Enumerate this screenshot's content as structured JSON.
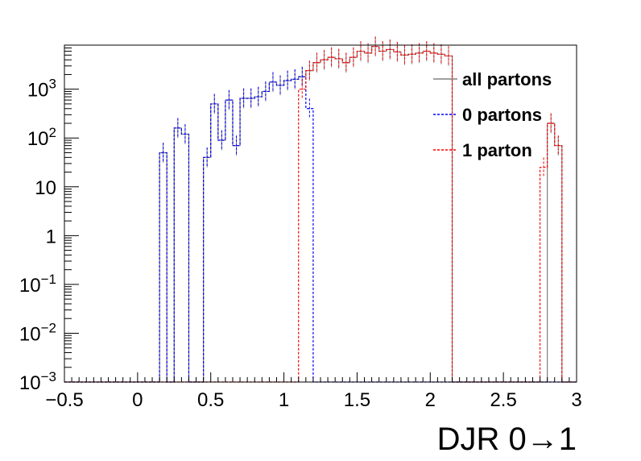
{
  "chart_data": {
    "type": "line",
    "xlabel": "DJR 0→1",
    "ylabel": "",
    "xlim": [
      -0.5,
      3.0
    ],
    "ylim": [
      0.001,
      8000
    ],
    "y_scale": "log",
    "grid": false,
    "legend_placement": "top-right",
    "bin_width": 0.05,
    "x_ticks": [
      -0.5,
      0,
      0.5,
      1,
      1.5,
      2,
      2.5,
      3
    ],
    "x_tick_labels": [
      "−0.5",
      "0",
      "0.5",
      "1",
      "1.5",
      "2",
      "2.5",
      "3"
    ],
    "y_ticks": [
      {
        "value": 1000,
        "base": "10",
        "exp": "3"
      },
      {
        "value": 100,
        "base": "10",
        "exp": "2"
      },
      {
        "value": 10,
        "base": "10",
        "exp": ""
      },
      {
        "value": 1,
        "base": "1",
        "exp": ""
      },
      {
        "value": 0.1,
        "base": "10",
        "exp": "−1"
      },
      {
        "value": 0.01,
        "base": "10",
        "exp": "−2"
      },
      {
        "value": 0.001,
        "base": "10",
        "exp": "−3"
      }
    ],
    "series": [
      {
        "name": "all partons",
        "color": "#808080",
        "style": "solid",
        "bins": [
          [
            0.15,
            50
          ],
          [
            0.25,
            160
          ],
          [
            0.3,
            120
          ],
          [
            0.35,
            0.001
          ],
          [
            0.45,
            40
          ],
          [
            0.5,
            500
          ],
          [
            0.55,
            90
          ],
          [
            0.6,
            600
          ],
          [
            0.65,
            70
          ],
          [
            0.7,
            650
          ],
          [
            0.75,
            650
          ],
          [
            0.8,
            700
          ],
          [
            0.85,
            900
          ],
          [
            0.9,
            1400
          ],
          [
            0.95,
            1200
          ],
          [
            1.0,
            1500
          ],
          [
            1.05,
            1600
          ],
          [
            1.1,
            1800
          ],
          [
            1.15,
            2400
          ],
          [
            1.2,
            3500
          ],
          [
            1.25,
            4000
          ],
          [
            1.3,
            4500
          ],
          [
            1.35,
            4200
          ],
          [
            1.4,
            3500
          ],
          [
            1.45,
            4500
          ],
          [
            1.5,
            6000
          ],
          [
            1.55,
            5500
          ],
          [
            1.6,
            7500
          ],
          [
            1.65,
            6000
          ],
          [
            1.7,
            6500
          ],
          [
            1.75,
            5800
          ],
          [
            1.8,
            5000
          ],
          [
            1.85,
            5200
          ],
          [
            1.9,
            5500
          ],
          [
            1.95,
            6000
          ],
          [
            2.0,
            5500
          ],
          [
            2.05,
            5200
          ],
          [
            2.1,
            4800
          ],
          [
            2.8,
            200
          ],
          [
            2.85,
            70
          ]
        ]
      },
      {
        "name": "0 partons",
        "color": "#0000ff",
        "style": "dashed",
        "bins": [
          [
            0.15,
            50
          ],
          [
            0.25,
            160
          ],
          [
            0.3,
            120
          ],
          [
            0.45,
            40
          ],
          [
            0.5,
            500
          ],
          [
            0.55,
            90
          ],
          [
            0.6,
            600
          ],
          [
            0.65,
            70
          ],
          [
            0.7,
            650
          ],
          [
            0.75,
            650
          ],
          [
            0.8,
            700
          ],
          [
            0.85,
            900
          ],
          [
            0.9,
            1400
          ],
          [
            0.95,
            1200
          ],
          [
            1.0,
            1500
          ],
          [
            1.05,
            1600
          ],
          [
            1.1,
            1800
          ],
          [
            1.15,
            400
          ]
        ]
      },
      {
        "name": "1 parton",
        "color": "#ff0000",
        "style": "dashed",
        "bins": [
          [
            1.1,
            1000
          ],
          [
            1.15,
            2400
          ],
          [
            1.2,
            3500
          ],
          [
            1.25,
            4000
          ],
          [
            1.3,
            4500
          ],
          [
            1.35,
            4200
          ],
          [
            1.4,
            3500
          ],
          [
            1.45,
            4500
          ],
          [
            1.5,
            6000
          ],
          [
            1.55,
            5500
          ],
          [
            1.6,
            7500
          ],
          [
            1.65,
            6000
          ],
          [
            1.7,
            6500
          ],
          [
            1.75,
            5800
          ],
          [
            1.8,
            5000
          ],
          [
            1.85,
            5200
          ],
          [
            1.9,
            5500
          ],
          [
            1.95,
            6000
          ],
          [
            2.0,
            5500
          ],
          [
            2.05,
            5200
          ],
          [
            2.1,
            4800
          ],
          [
            2.75,
            25
          ],
          [
            2.8,
            200
          ],
          [
            2.85,
            70
          ]
        ]
      }
    ]
  }
}
